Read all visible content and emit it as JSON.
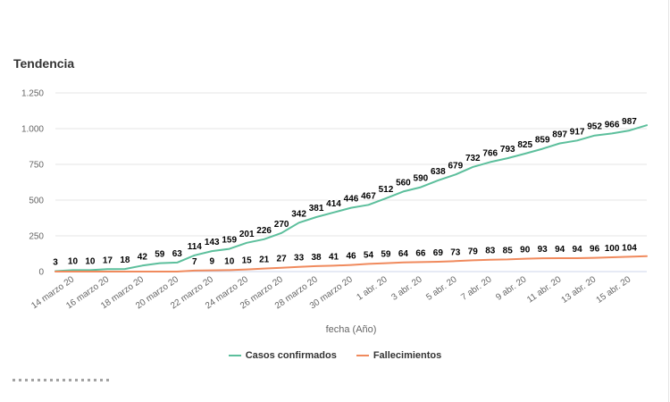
{
  "page": {
    "title": "Tendencia"
  },
  "legend": {
    "items": [
      {
        "label": "Casos confirmados",
        "color": "#5cbf9c"
      },
      {
        "label": "Fallecimientos",
        "color": "#f08a5d"
      }
    ]
  },
  "chart_data": {
    "type": "line",
    "title": "Tendencia",
    "xlabel": "fecha (Año)",
    "ylabel": "",
    "ylim": [
      0,
      1250
    ],
    "yticks": [
      0,
      250,
      500,
      750,
      1000,
      1250
    ],
    "ytick_labels": [
      "0",
      "250",
      "500",
      "750",
      "1.000",
      "1.250"
    ],
    "xlim": [
      0,
      34
    ],
    "x_tick_positions": [
      1,
      3,
      5,
      7,
      9,
      11,
      13,
      15,
      17,
      19,
      21,
      23,
      25,
      27,
      29,
      31,
      33
    ],
    "x_tick_labels": [
      "14 marzo 20",
      "16 marzo 20",
      "18 marzo 20",
      "20 marzo 20",
      "22 marzo 20",
      "24 marzo 20",
      "26 marzo 20",
      "28 marzo 20",
      "30 marzo 20",
      "1 abr. 20",
      "3 abr. 20",
      "5 abr. 20",
      "7 abr. 20",
      "9 abr. 20",
      "11 abr. 20",
      "13 abr. 20",
      "15 abr. 20"
    ],
    "grid": true,
    "legend_position": "bottom-center",
    "series": [
      {
        "name": "Casos confirmados",
        "color": "#5cbf9c",
        "x": [
          0,
          1,
          2,
          3,
          4,
          5,
          6,
          7,
          8,
          9,
          10,
          11,
          12,
          13,
          14,
          15,
          16,
          17,
          18,
          19,
          20,
          21,
          22,
          23,
          24,
          25,
          26,
          27,
          28,
          29,
          30,
          31,
          32,
          33,
          34
        ],
        "values": [
          3,
          10,
          10,
          17,
          18,
          42,
          59,
          63,
          114,
          143,
          159,
          201,
          226,
          270,
          342,
          381,
          414,
          446,
          467,
          512,
          560,
          590,
          638,
          679,
          732,
          766,
          793,
          825,
          859,
          897,
          917,
          952,
          966,
          987,
          1024
        ],
        "labels": [
          "3",
          "10",
          "10",
          "17",
          "18",
          "42",
          "59",
          "63",
          "114",
          "143",
          "159",
          "201",
          "226",
          "270",
          "342",
          "381",
          "414",
          "446",
          "467",
          "512",
          "560",
          "590",
          "638",
          "679",
          "732",
          "766",
          "793",
          "825",
          "859",
          "897",
          "917",
          "952",
          "966",
          "987",
          null
        ]
      },
      {
        "name": "Fallecimientos",
        "color": "#f08a5d",
        "x": [
          0,
          1,
          2,
          3,
          4,
          5,
          6,
          7,
          8,
          9,
          10,
          11,
          12,
          13,
          14,
          15,
          16,
          17,
          18,
          19,
          20,
          21,
          22,
          23,
          24,
          25,
          26,
          27,
          28,
          29,
          30,
          31,
          32,
          33,
          34
        ],
        "values": [
          0,
          0,
          0,
          0,
          0,
          0,
          0,
          0,
          7,
          9,
          10,
          15,
          21,
          27,
          33,
          38,
          41,
          46,
          54,
          59,
          64,
          66,
          69,
          73,
          79,
          83,
          85,
          90,
          93,
          94,
          94,
          96,
          100,
          104,
          108
        ],
        "labels": [
          null,
          null,
          null,
          null,
          null,
          null,
          null,
          null,
          "7",
          "9",
          "10",
          "15",
          "21",
          "27",
          "33",
          "38",
          "41",
          "46",
          "54",
          "59",
          "64",
          "66",
          "69",
          "73",
          "79",
          "83",
          "85",
          "90",
          "93",
          "94",
          "94",
          "96",
          "100",
          "104",
          null
        ]
      }
    ]
  }
}
